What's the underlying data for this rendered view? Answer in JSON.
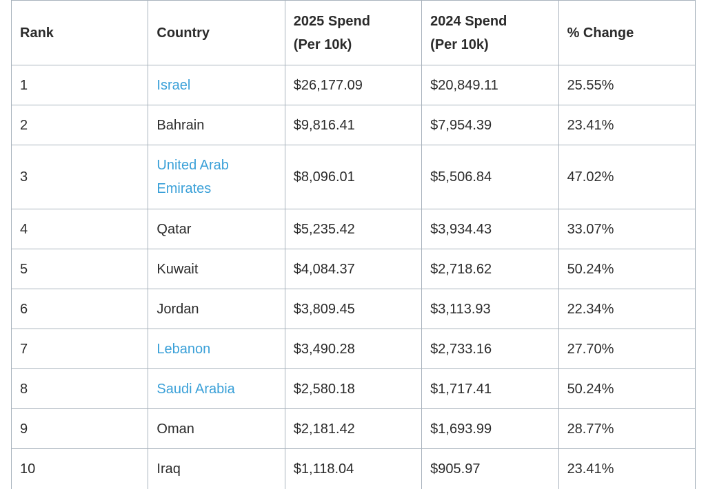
{
  "headers": [
    "Rank",
    "Country",
    "2025 Spend (Per 10k)",
    "2024 Spend (Per 10k)",
    "% Change"
  ],
  "rows": [
    {
      "rank": "1",
      "country": "Israel",
      "link": true,
      "spend2025": "$26,177.09",
      "spend2024": "$20,849.11",
      "change": "25.55%"
    },
    {
      "rank": "2",
      "country": "Bahrain",
      "link": false,
      "spend2025": "$9,816.41",
      "spend2024": "$7,954.39",
      "change": "23.41%"
    },
    {
      "rank": "3",
      "country": "United Arab Emirates",
      "link": true,
      "spend2025": "$8,096.01",
      "spend2024": "$5,506.84",
      "change": "47.02%"
    },
    {
      "rank": "4",
      "country": "Qatar",
      "link": false,
      "spend2025": "$5,235.42",
      "spend2024": "$3,934.43",
      "change": "33.07%"
    },
    {
      "rank": "5",
      "country": "Kuwait",
      "link": false,
      "spend2025": "$4,084.37",
      "spend2024": "$2,718.62",
      "change": "50.24%"
    },
    {
      "rank": "6",
      "country": "Jordan",
      "link": false,
      "spend2025": "$3,809.45",
      "spend2024": "$3,113.93",
      "change": "22.34%"
    },
    {
      "rank": "7",
      "country": "Lebanon",
      "link": true,
      "spend2025": "$3,490.28",
      "spend2024": "$2,733.16",
      "change": "27.70%"
    },
    {
      "rank": "8",
      "country": "Saudi Arabia",
      "link": true,
      "spend2025": "$2,580.18",
      "spend2024": "$1,717.41",
      "change": "50.24%"
    },
    {
      "rank": "9",
      "country": "Oman",
      "link": false,
      "spend2025": "$2,181.42",
      "spend2024": "$1,693.99",
      "change": "28.77%"
    },
    {
      "rank": "10",
      "country": "Iraq",
      "link": false,
      "spend2025": "$1,118.04",
      "spend2024": "$905.97",
      "change": "23.41%"
    }
  ],
  "colors": {
    "link": "#3aa0d8",
    "border": "#a9b3bd",
    "text": "#2b2b2b"
  }
}
